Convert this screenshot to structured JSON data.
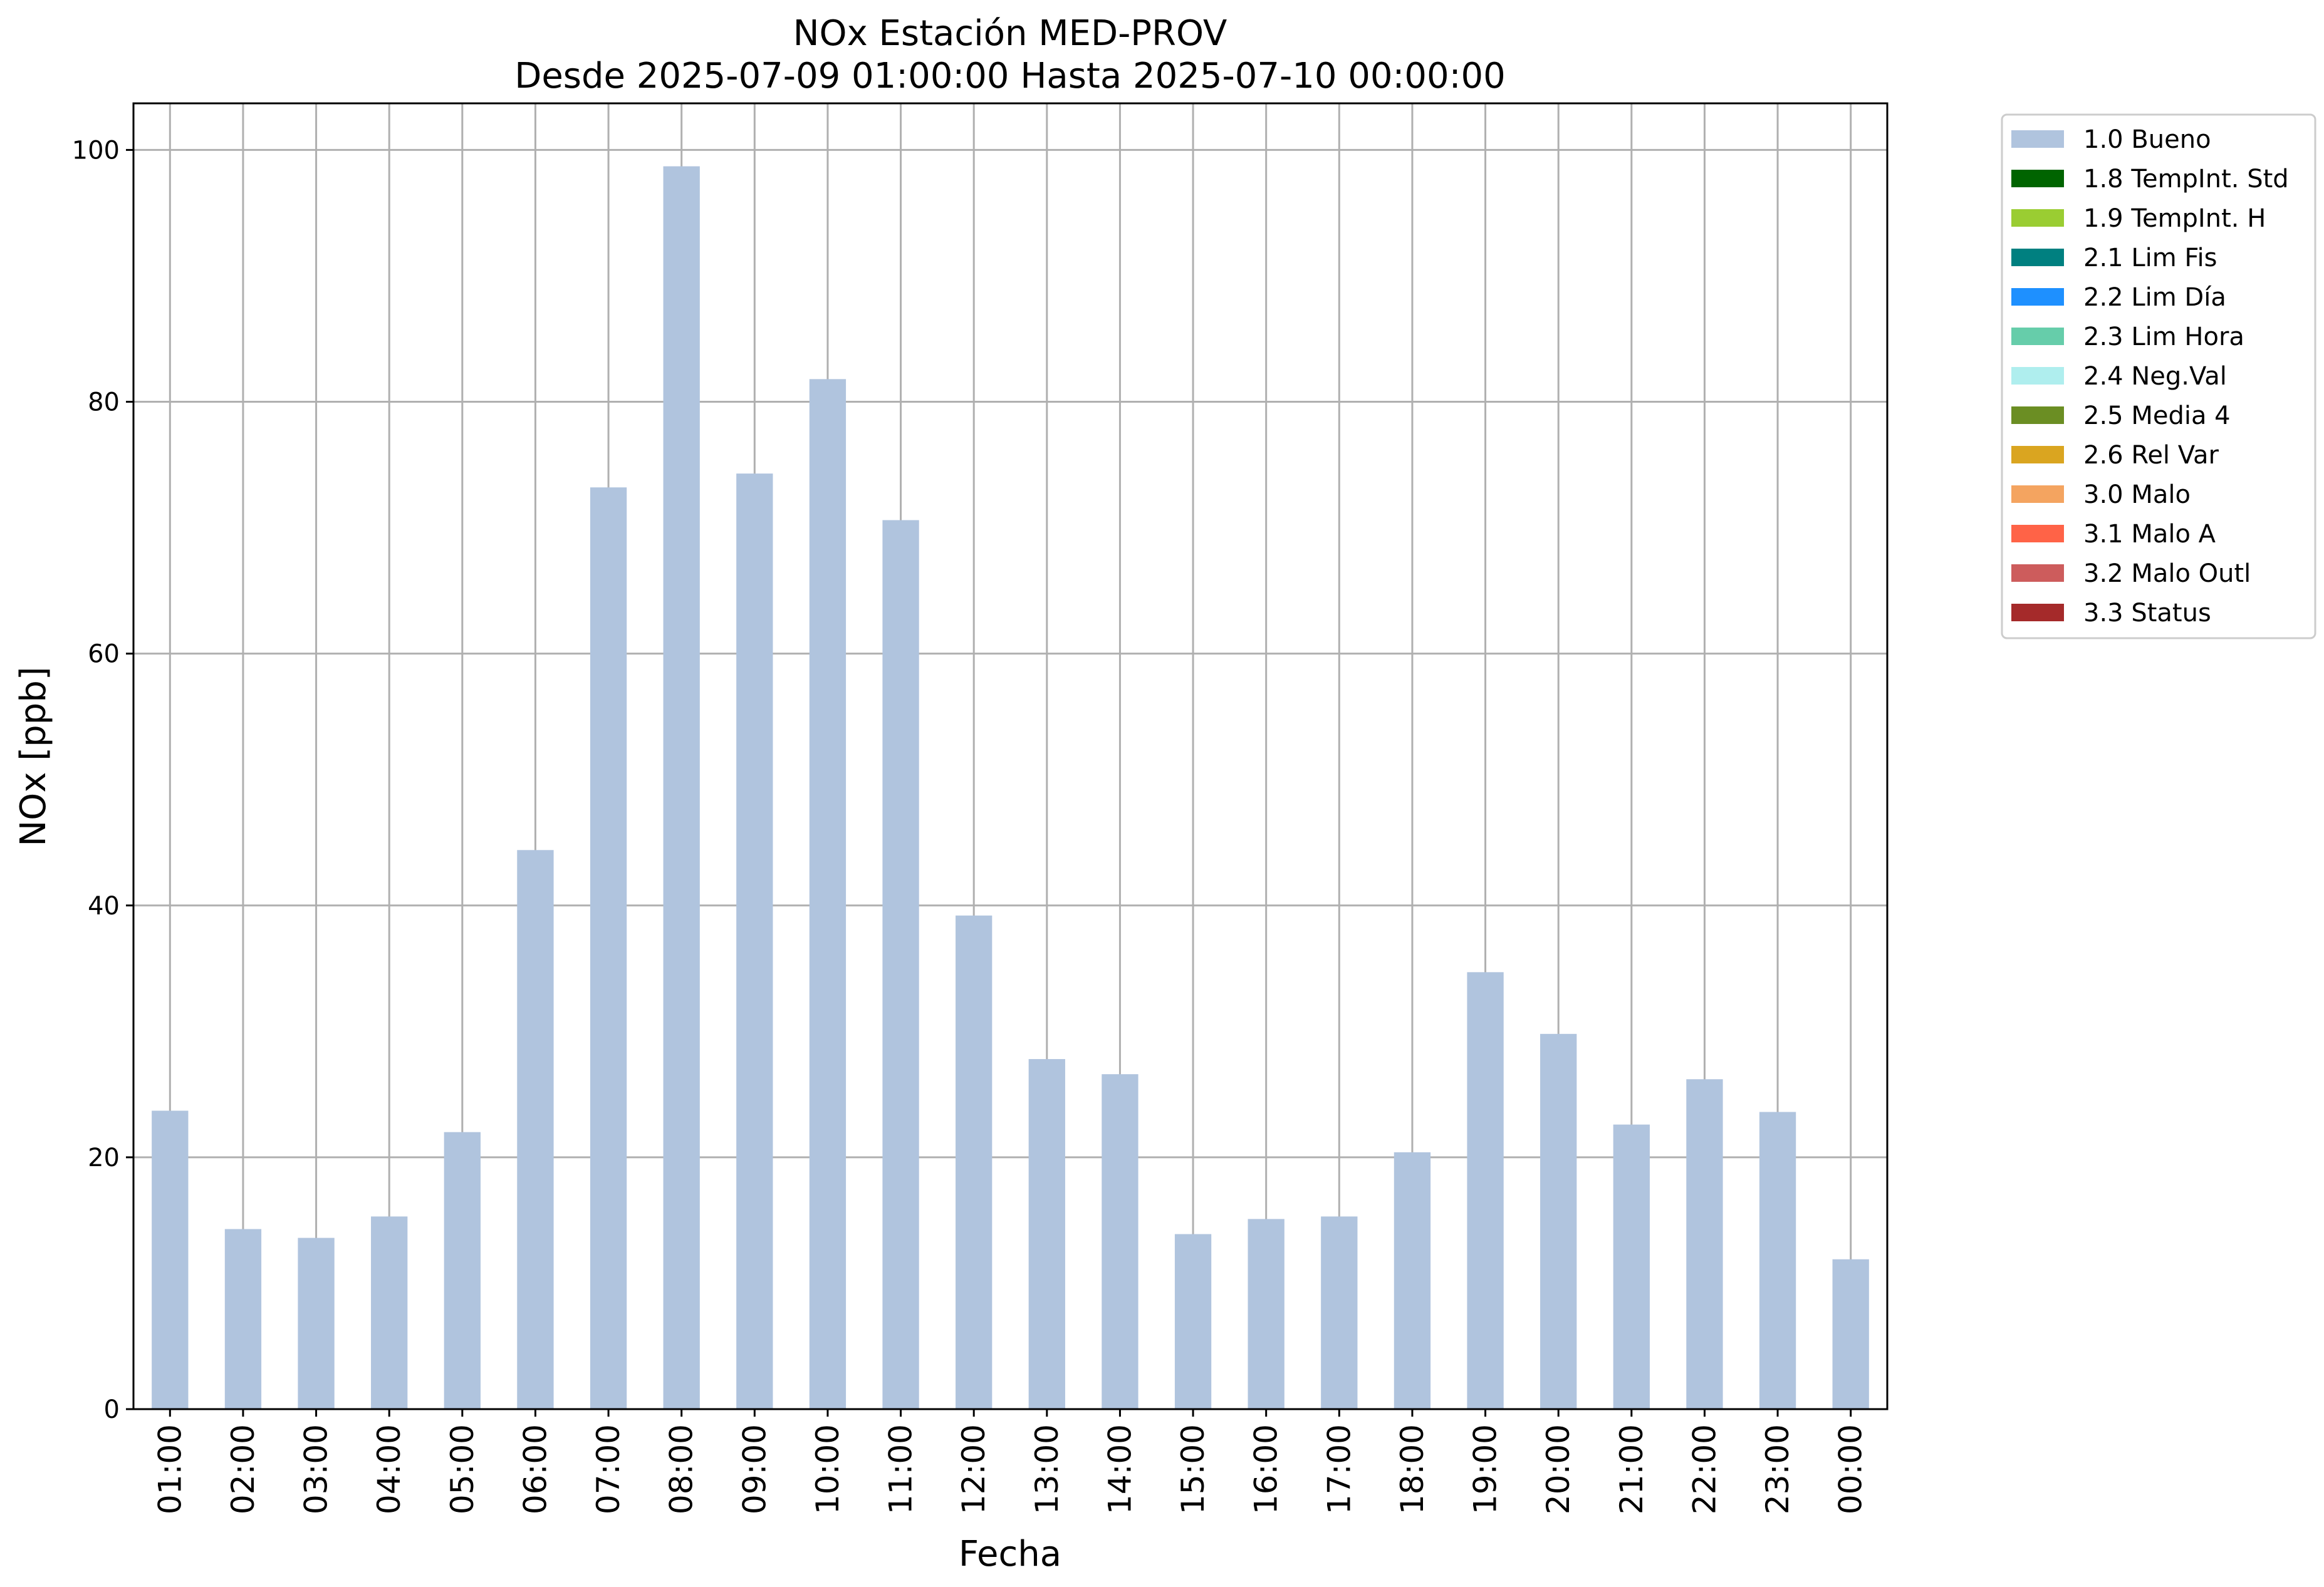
{
  "chart_data": {
    "type": "bar",
    "title": [
      "NOx Estación MED-PROV",
      "Desde 2025-07-09 01:00:00 Hasta 2025-07-10 00:00:00"
    ],
    "xlabel": "Fecha",
    "ylabel": "NOx [ppb]",
    "ylim": [
      0,
      103.7
    ],
    "yticks": [
      0,
      20,
      40,
      60,
      80,
      100
    ],
    "grid": true,
    "legend_position": "outside-top-right",
    "categories": [
      "01:00",
      "02:00",
      "03:00",
      "04:00",
      "05:00",
      "06:00",
      "07:00",
      "08:00",
      "09:00",
      "10:00",
      "11:00",
      "12:00",
      "13:00",
      "14:00",
      "15:00",
      "16:00",
      "17:00",
      "18:00",
      "19:00",
      "20:00",
      "21:00",
      "22:00",
      "23:00",
      "00:00"
    ],
    "series": [
      {
        "name": "1.0 Bueno",
        "color": "#b0c4de",
        "values": [
          23.7,
          14.3,
          13.6,
          15.3,
          22.0,
          44.4,
          73.2,
          98.7,
          74.3,
          81.8,
          70.6,
          39.2,
          27.8,
          26.6,
          13.9,
          15.1,
          15.3,
          20.4,
          34.7,
          29.8,
          22.6,
          26.2,
          23.6,
          11.9
        ]
      }
    ],
    "legend": [
      {
        "label": "1.0 Bueno",
        "color": "#b0c4de"
      },
      {
        "label": "1.8 TempInt. Std",
        "color": "#006400"
      },
      {
        "label": "1.9 TempInt. H",
        "color": "#9acd32"
      },
      {
        "label": "2.1 Lim Fis",
        "color": "#008080"
      },
      {
        "label": "2.2 Lim Día",
        "color": "#1e90ff"
      },
      {
        "label": "2.3 Lim Hora",
        "color": "#66cdaa"
      },
      {
        "label": "2.4 Neg.Val",
        "color": "#afeeee"
      },
      {
        "label": "2.5 Media 4",
        "color": "#6b8e23"
      },
      {
        "label": "2.6 Rel Var",
        "color": "#daa520"
      },
      {
        "label": "3.0 Malo",
        "color": "#f4a460"
      },
      {
        "label": "3.1 Malo A",
        "color": "#ff6347"
      },
      {
        "label": "3.2 Malo Outl",
        "color": "#cd5c5c"
      },
      {
        "label": "3.3 Status",
        "color": "#a52a2a"
      }
    ]
  }
}
